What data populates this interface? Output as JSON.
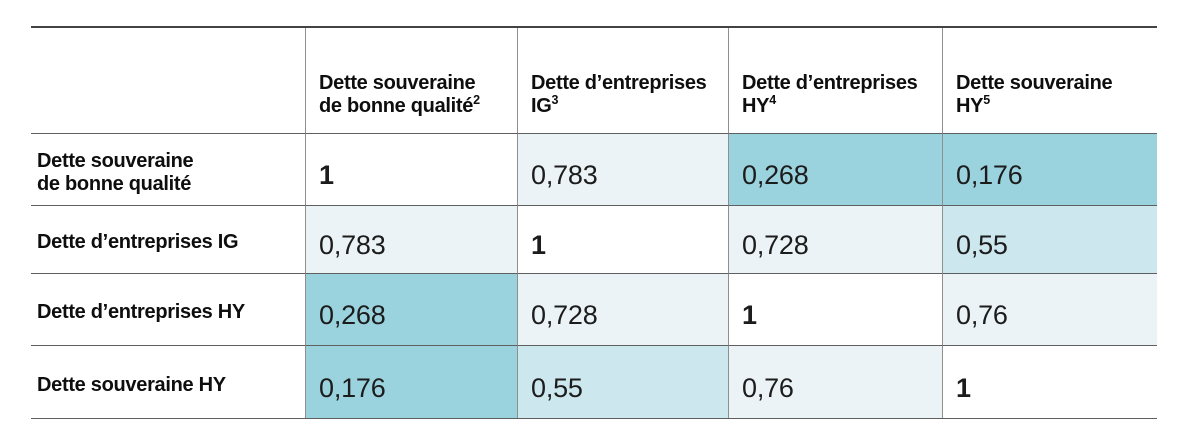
{
  "colors": {
    "diag": "#ffffff",
    "high": "#ebf3f6",
    "mid": "#cde7ee",
    "low": "#9ad2de"
  },
  "table": {
    "col_headers": [
      {
        "line1": "Dette souveraine",
        "line2": "de bonne qualité",
        "sup": "2"
      },
      {
        "line1": "Dette d’entreprises",
        "line2": "IG",
        "sup": "3"
      },
      {
        "line1": "Dette d’entreprises",
        "line2": "HY",
        "sup": "4"
      },
      {
        "line1": "Dette souveraine",
        "line2": "HY",
        "sup": "5"
      }
    ],
    "rows": [
      {
        "header_line1": "Dette souveraine",
        "header_line2": "de bonne qualité",
        "cells": [
          {
            "value": "1",
            "shade": "diag"
          },
          {
            "value": "0,783",
            "shade": "high"
          },
          {
            "value": "0,268",
            "shade": "low"
          },
          {
            "value": "0,176",
            "shade": "low"
          }
        ]
      },
      {
        "header_line1": "Dette d’entreprises IG",
        "header_line2": "",
        "cells": [
          {
            "value": "0,783",
            "shade": "high"
          },
          {
            "value": "1",
            "shade": "diag"
          },
          {
            "value": "0,728",
            "shade": "high"
          },
          {
            "value": "0,55",
            "shade": "mid"
          }
        ]
      },
      {
        "header_line1": "Dette d’entreprises HY",
        "header_line2": "",
        "cells": [
          {
            "value": "0,268",
            "shade": "low"
          },
          {
            "value": "0,728",
            "shade": "high"
          },
          {
            "value": "1",
            "shade": "diag"
          },
          {
            "value": "0,76",
            "shade": "high"
          }
        ]
      },
      {
        "header_line1": "Dette souveraine HY",
        "header_line2": "",
        "cells": [
          {
            "value": "0,176",
            "shade": "low"
          },
          {
            "value": "0,55",
            "shade": "mid"
          },
          {
            "value": "0,76",
            "shade": "high"
          },
          {
            "value": "1",
            "shade": "diag"
          }
        ]
      }
    ]
  },
  "chart_data": {
    "type": "heatmap",
    "categories": [
      "Dette souveraine de bonne qualité",
      "Dette d’entreprises IG",
      "Dette d’entreprises HY",
      "Dette souveraine HY"
    ],
    "col_header_superscripts": [
      "2",
      "3",
      "4",
      "5"
    ],
    "matrix": [
      [
        1,
        0.783,
        0.268,
        0.176
      ],
      [
        0.783,
        1,
        0.728,
        0.55
      ],
      [
        0.268,
        0.728,
        1,
        0.76
      ],
      [
        0.176,
        0.55,
        0.76,
        1
      ]
    ],
    "decimal_separator": ",",
    "legend_position": "none",
    "color_scale": {
      "low_correlation": "#9ad2de",
      "mid_correlation": "#cde7ee",
      "high_correlation": "#ebf3f6",
      "diagonal": "#ffffff"
    }
  }
}
